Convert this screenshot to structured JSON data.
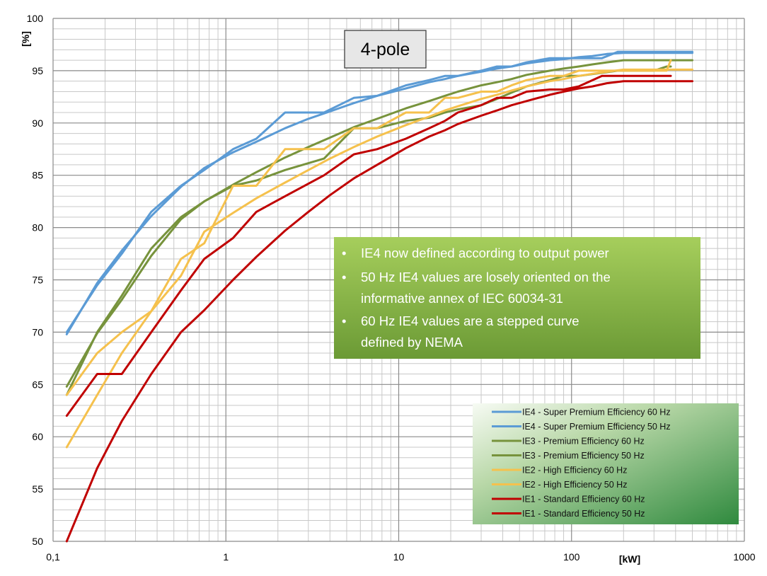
{
  "chart_data": {
    "type": "line",
    "title": "4-pole",
    "xlabel": "[kW]",
    "ylabel": "[%]",
    "xscale": "log",
    "xlim": [
      0.1,
      1000
    ],
    "ylim": [
      50,
      100
    ],
    "xticks": [
      0.1,
      1,
      10,
      100,
      1000
    ],
    "xtick_labels": [
      "0,1",
      "1",
      "10",
      "100",
      "1000"
    ],
    "yticks": [
      50,
      55,
      60,
      65,
      70,
      75,
      80,
      85,
      90,
      95,
      100
    ],
    "ytick_labels": [
      "50",
      "55",
      "60",
      "65",
      "70",
      "75",
      "80",
      "85",
      "90",
      "95",
      "100"
    ],
    "grid": true,
    "legend_position": "bottom-right",
    "notes": [
      "IE4 now defined according to output power",
      "50 Hz IE4 values are losely oriented on the",
      "informative annex of IEC 60034-31",
      "60 Hz IE4 values are a stepped curve",
      "defined by NEMA"
    ],
    "series": [
      {
        "name": "IE4 - Super Premium Efficiency 60 Hz",
        "color": "#5b9bd5",
        "x": [
          0.12,
          0.18,
          0.25,
          0.37,
          0.55,
          0.75,
          1.1,
          1.5,
          2.2,
          3.7,
          5.5,
          7.5,
          11,
          15,
          18.5,
          22,
          30,
          37,
          45,
          55,
          75,
          90,
          110,
          150,
          185,
          220,
          250,
          300,
          355,
          375,
          500
        ],
        "y": [
          70,
          74.5,
          77.5,
          81.5,
          84,
          85.5,
          87.5,
          88.5,
          91,
          91,
          92.4,
          92.6,
          93.6,
          94.1,
          94.5,
          94.5,
          95,
          95.4,
          95.4,
          95.8,
          96.2,
          96.2,
          96.2,
          96.2,
          96.8,
          96.8,
          96.8,
          96.8,
          96.8,
          96.8,
          96.8
        ]
      },
      {
        "name": "IE4 - Super Premium Efficiency 50 Hz",
        "color": "#5b9bd5",
        "x": [
          0.12,
          0.18,
          0.25,
          0.37,
          0.55,
          0.75,
          1.1,
          1.5,
          2.2,
          3,
          4,
          5.5,
          7.5,
          11,
          15,
          18.5,
          22,
          30,
          37,
          45,
          55,
          75,
          90,
          110,
          132,
          160,
          200,
          250,
          315,
          355,
          400,
          500
        ],
        "y": [
          69.8,
          74.7,
          77.8,
          81.1,
          83.9,
          85.7,
          87.2,
          88.2,
          89.5,
          90.4,
          91.1,
          91.9,
          92.6,
          93.3,
          93.9,
          94.2,
          94.5,
          94.9,
          95.2,
          95.4,
          95.7,
          96,
          96.1,
          96.3,
          96.4,
          96.6,
          96.7,
          96.7,
          96.7,
          96.7,
          96.7,
          96.7
        ]
      },
      {
        "name": "IE3 - Premium Efficiency 60 Hz",
        "color": "#77933c",
        "x": [
          0.12,
          0.18,
          0.25,
          0.37,
          0.55,
          0.75,
          1.1,
          1.5,
          2.2,
          3.7,
          5.5,
          7.5,
          11,
          15,
          18.5,
          22,
          30,
          37,
          45,
          55,
          75,
          90,
          110,
          150,
          185,
          220,
          250,
          300,
          355,
          375
        ],
        "y": [
          64,
          70,
          73.5,
          78,
          81,
          82.5,
          84,
          84.5,
          85.5,
          86.6,
          89.5,
          89.5,
          90.2,
          90.5,
          91,
          91.3,
          91.7,
          92.3,
          92.9,
          93.5,
          94.1,
          94.5,
          94.5,
          94.8,
          95,
          95,
          95,
          95,
          95.4,
          95.4
        ]
      },
      {
        "name": "IE3 - Premium Efficiency 50 Hz",
        "color": "#77933c",
        "x": [
          0.12,
          0.18,
          0.25,
          0.37,
          0.55,
          0.75,
          1.1,
          1.5,
          2.2,
          3,
          4,
          5.5,
          7.5,
          11,
          15,
          18.5,
          22,
          30,
          37,
          45,
          55,
          75,
          90,
          110,
          132,
          160,
          200,
          250,
          315,
          355,
          400,
          500
        ],
        "y": [
          64.8,
          69.9,
          73.1,
          77.3,
          80.8,
          82.5,
          84.1,
          85.3,
          86.7,
          87.7,
          88.6,
          89.6,
          90.4,
          91.4,
          92.1,
          92.6,
          93,
          93.6,
          93.9,
          94.2,
          94.6,
          95,
          95.2,
          95.4,
          95.6,
          95.8,
          96,
          96,
          96,
          96,
          96,
          96
        ]
      },
      {
        "name": "IE2 - High Efficiency 60 Hz",
        "color": "#f5c14d",
        "x": [
          0.12,
          0.18,
          0.25,
          0.37,
          0.55,
          0.75,
          1.1,
          1.5,
          2.2,
          3.7,
          5.5,
          7.5,
          11,
          15,
          18.5,
          22,
          30,
          37,
          45,
          55,
          75,
          90,
          110,
          150,
          185,
          220,
          250,
          300,
          355,
          375
        ],
        "y": [
          59,
          64,
          68,
          72,
          77,
          78.5,
          84,
          84,
          87.5,
          87.5,
          89.5,
          89.5,
          91,
          91,
          92.4,
          92.4,
          93,
          93,
          93.6,
          94.1,
          94.5,
          94.5,
          95,
          95,
          95,
          95,
          95,
          95,
          95,
          96
        ]
      },
      {
        "name": "IE2 - High Efficiency 50 Hz",
        "color": "#f5c14d",
        "x": [
          0.12,
          0.18,
          0.25,
          0.37,
          0.55,
          0.75,
          1.1,
          1.5,
          2.2,
          3,
          4,
          5.5,
          7.5,
          11,
          15,
          18.5,
          22,
          30,
          37,
          45,
          55,
          75,
          90,
          110,
          132,
          160,
          200,
          250,
          315,
          355,
          400,
          500
        ],
        "y": [
          64,
          68,
          70,
          72,
          75.4,
          79.6,
          81.4,
          82.8,
          84.3,
          85.5,
          86.6,
          87.7,
          88.7,
          89.8,
          90.6,
          91.2,
          91.6,
          92.3,
          92.7,
          93.1,
          93.5,
          94,
          94.2,
          94.5,
          94.7,
          94.9,
          95.1,
          95.1,
          95.1,
          95.1,
          95.1,
          95.1
        ]
      },
      {
        "name": "IE1 - Standard Efficiency 60 Hz",
        "color": "#c00000",
        "x": [
          0.12,
          0.18,
          0.25,
          0.37,
          0.55,
          0.75,
          1.1,
          1.5,
          2.2,
          3.7,
          5.5,
          7.5,
          11,
          15,
          18.5,
          22,
          30,
          37,
          45,
          55,
          75,
          90,
          110,
          150,
          185,
          220,
          250,
          300,
          355,
          375
        ],
        "y": [
          62,
          66,
          66,
          70,
          74,
          77,
          79,
          81.5,
          83,
          85,
          87,
          87.5,
          88.5,
          89.5,
          90.2,
          91,
          91.7,
          92.4,
          92.4,
          93,
          93.2,
          93.2,
          93.5,
          94.5,
          94.5,
          94.5,
          94.5,
          94.5,
          94.5,
          94.5
        ]
      },
      {
        "name": "IE1 - Standard Efficiency 50 Hz",
        "color": "#c00000",
        "x": [
          0.12,
          0.18,
          0.25,
          0.37,
          0.55,
          0.75,
          1.1,
          1.5,
          2.2,
          3,
          4,
          5.5,
          7.5,
          11,
          15,
          18.5,
          22,
          30,
          37,
          45,
          55,
          75,
          90,
          110,
          132,
          160,
          200,
          250,
          315,
          355,
          400,
          500
        ],
        "y": [
          50,
          57,
          61.5,
          66,
          70,
          72.1,
          75,
          77.2,
          79.7,
          81.5,
          83.1,
          84.7,
          86,
          87.6,
          88.7,
          89.3,
          89.9,
          90.7,
          91.2,
          91.7,
          92.1,
          92.7,
          93,
          93.3,
          93.5,
          93.8,
          94,
          94,
          94,
          94,
          94,
          94
        ]
      }
    ]
  }
}
